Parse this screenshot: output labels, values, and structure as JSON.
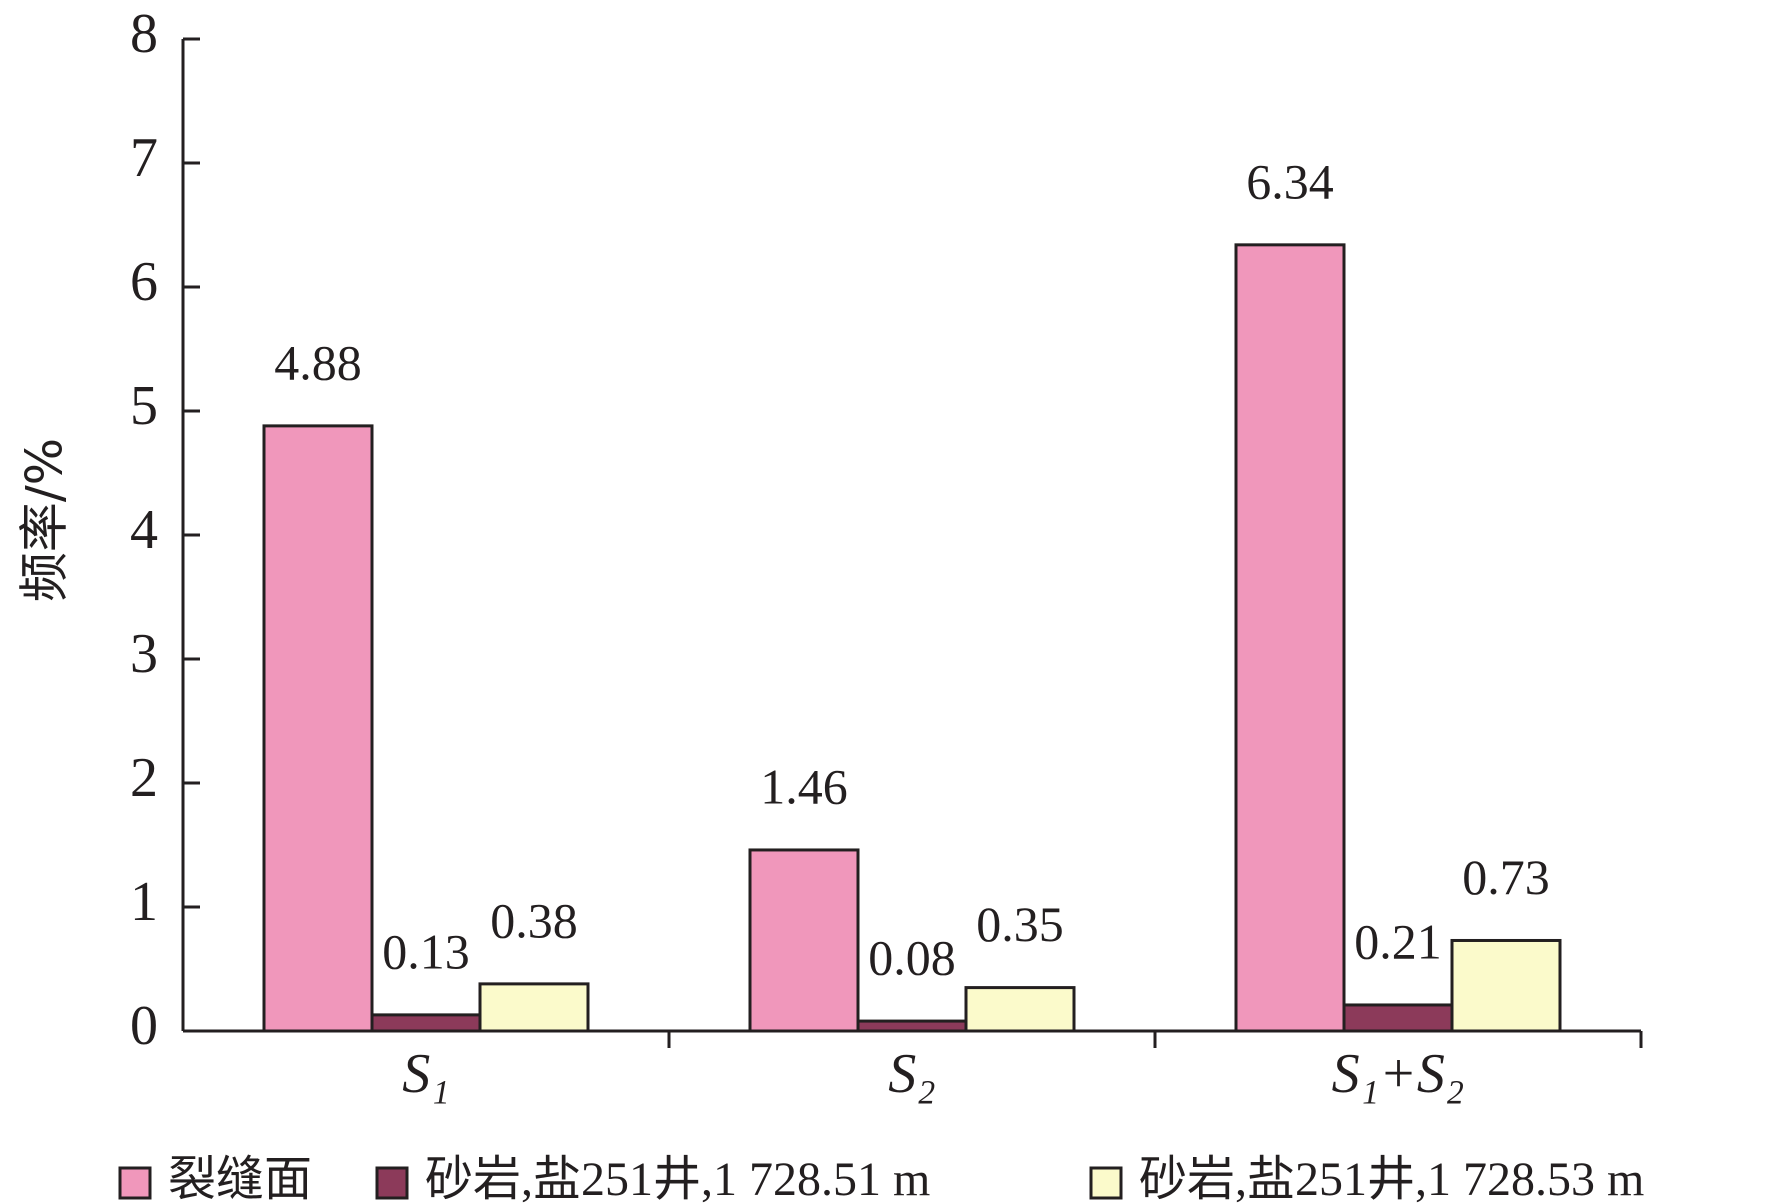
{
  "chart_data": {
    "type": "bar",
    "y_label": "频率/%",
    "categories": [
      "S₁",
      "S₂",
      "S₁+S₂"
    ],
    "series": [
      {
        "name": "裂缝面",
        "color": "#f097bb",
        "values": [
          4.88,
          1.46,
          6.34
        ]
      },
      {
        "name": "砂岩,盐251井,1 728.51 m",
        "color": "#8c3a5a",
        "values": [
          0.13,
          0.08,
          0.21
        ]
      },
      {
        "name": "砂岩,盐251井,1 728.53 m",
        "color": "#fbfacb",
        "values": [
          0.38,
          0.35,
          0.73
        ]
      }
    ],
    "ylim": [
      0,
      8
    ],
    "yticks": [
      0,
      1,
      2,
      3,
      4,
      5,
      6,
      7,
      8
    ],
    "grid": false
  }
}
